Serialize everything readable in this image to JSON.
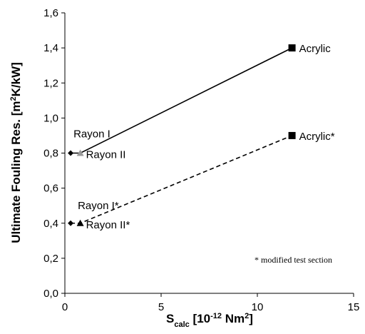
{
  "chart_data": {
    "type": "line",
    "x_label": [
      {
        "text": "S"
      },
      {
        "text": "calc",
        "shift": "sub"
      },
      {
        "text": " [10"
      },
      {
        "text": "-12",
        "shift": "sup"
      },
      {
        "text": " Nm"
      },
      {
        "text": "2",
        "shift": "sup"
      },
      {
        "text": "]"
      }
    ],
    "y_label": [
      {
        "text": "Ultimate Fouling Res. [m"
      },
      {
        "text": "2",
        "shift": "sup"
      },
      {
        "text": "K/kW]"
      }
    ],
    "annotation": "* modified test section",
    "xlim": [
      0,
      15
    ],
    "xticks": [
      0,
      5,
      10,
      15
    ],
    "ylim": [
      0,
      1.6
    ],
    "yticks": [
      {
        "value": 0,
        "label": "0,0"
      },
      {
        "value": 0.2,
        "label": "0,2"
      },
      {
        "value": 0.4,
        "label": "0,4"
      },
      {
        "value": 0.6,
        "label": "0,6"
      },
      {
        "value": 0.8,
        "label": "0,8"
      },
      {
        "value": 1.0,
        "label": "1,0"
      },
      {
        "value": 1.2,
        "label": "1,2"
      },
      {
        "value": 1.4,
        "label": "1,4"
      },
      {
        "value": 1.6,
        "label": "1,6"
      }
    ],
    "series": [
      {
        "dash": false,
        "color": "#000000",
        "labels": [
          "Rayon I",
          "Rayon II",
          "Acrylic"
        ],
        "markers": [
          "diamond",
          "triangle",
          "square"
        ],
        "marker_colors": [
          "#000000",
          "#999999",
          "#000000"
        ],
        "x": [
          0.3,
          0.8,
          11.8
        ],
        "values": [
          0.8,
          0.8,
          1.4
        ]
      },
      {
        "dash": true,
        "color": "#000000",
        "labels": [
          "Rayon I*",
          "Rayon II*",
          "Acrylic*"
        ],
        "markers": [
          "diamond",
          "triangle",
          "square"
        ],
        "marker_colors": [
          "#000000",
          "#000000",
          "#000000"
        ],
        "x": [
          0.3,
          0.8,
          11.8
        ],
        "values": [
          0.4,
          0.4,
          0.9
        ]
      }
    ]
  }
}
